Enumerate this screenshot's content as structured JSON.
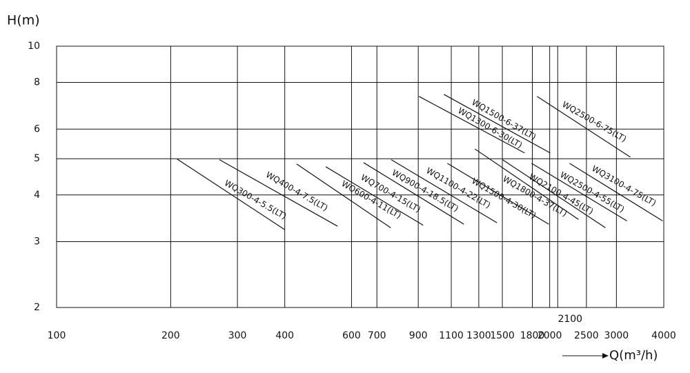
{
  "chart_data": {
    "type": "line",
    "y_label": "H(m)",
    "x_label": "Q(m³/h)",
    "log_x": true,
    "log_y": true,
    "grid": true,
    "color": "#111111",
    "xlim": [
      100,
      4000
    ],
    "ylim": [
      2,
      10
    ],
    "xticks": [
      100,
      200,
      300,
      400,
      600,
      700,
      900,
      1100,
      1300,
      1500,
      1800,
      2000,
      2100,
      2500,
      3000,
      4000
    ],
    "yticks": [
      2,
      3,
      4,
      5,
      6,
      8,
      10
    ],
    "series": [
      {
        "name": "WQ300-4-5.5(LT)",
        "x": [
          208,
          400
        ],
        "values": [
          4.99,
          3.23
        ]
      },
      {
        "name": "WQ400-4-7.5(LT)",
        "x": [
          269,
          551
        ],
        "values": [
          4.97,
          3.3
        ]
      },
      {
        "name": "WQ600-4-11(LT)",
        "x": [
          430,
          761
        ],
        "values": [
          4.84,
          3.27
        ]
      },
      {
        "name": "WQ700-4-15(LT)",
        "x": [
          513,
          927
        ],
        "values": [
          4.76,
          3.32
        ]
      },
      {
        "name": "WQ900-4-18.5(LT)",
        "x": [
          646,
          1188
        ],
        "values": [
          4.88,
          3.34
        ]
      },
      {
        "name": "WQ1100-4-22(LT)",
        "x": [
          764,
          1452
        ],
        "values": [
          4.97,
          3.37
        ]
      },
      {
        "name": "WQ1500-4-30(LT)",
        "x": [
          1074,
          1990
        ],
        "values": [
          4.86,
          3.34
        ]
      },
      {
        "name": "WQ1800-4-37(LT)",
        "x": [
          1270,
          2382
        ],
        "values": [
          5.31,
          3.44
        ]
      },
      {
        "name": "WQ2100-4-45(LT)",
        "x": [
          1502,
          2805
        ],
        "values": [
          4.97,
          3.27
        ]
      },
      {
        "name": "WQ2500-4-55(LT)",
        "x": [
          1792,
          3196
        ],
        "values": [
          4.86,
          3.41
        ]
      },
      {
        "name": "WQ3100-4-75(LT)",
        "x": [
          2256,
          3972
        ],
        "values": [
          4.86,
          3.41
        ]
      },
      {
        "name": "WQ1300-6-30(LT)",
        "x": [
          904,
          1718
        ],
        "values": [
          7.34,
          5.18
        ]
      },
      {
        "name": "WQ1500-6-37(LT)",
        "x": [
          1052,
          2007
        ],
        "values": [
          7.43,
          5.18
        ]
      },
      {
        "name": "WQ2500-6-75(LT)",
        "x": [
          1853,
          3264
        ],
        "values": [
          7.34,
          5.05
        ]
      }
    ]
  }
}
